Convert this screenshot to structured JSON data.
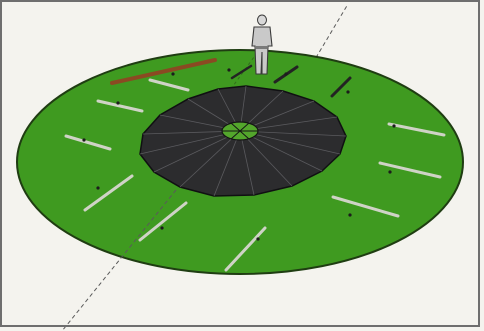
{
  "viewport": {
    "background": "#f4f3ee",
    "frame_color": "#6e6e6e"
  },
  "scene": {
    "ground_disc_color": "#3f9a20",
    "ground_edge_color": "#1f3d12",
    "center_roof_color": "#2c2c2e",
    "center_roof_edge_color": "#101012",
    "oculus_color": "#53a62c",
    "board_color": "#cfd3c6",
    "highlight_board_color": "#8a4a22",
    "axis_line_color": "#5a5a5a",
    "figure": "human-scale-figure-icon"
  }
}
